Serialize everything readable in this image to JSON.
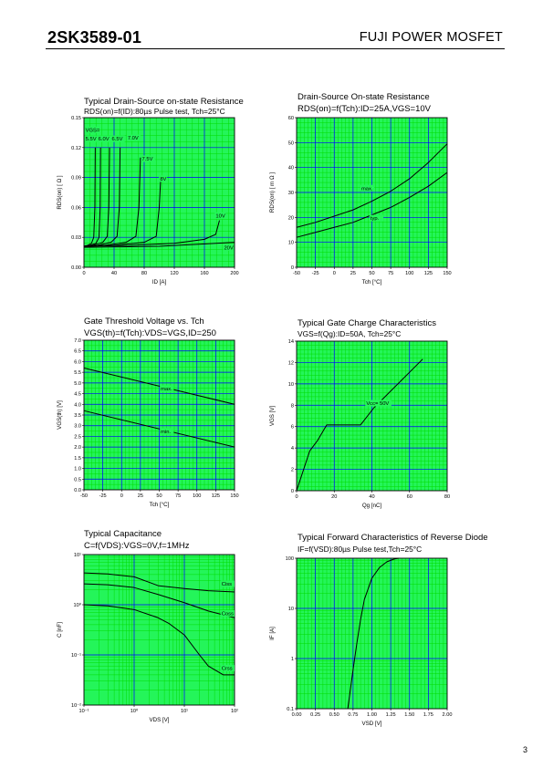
{
  "header": {
    "part_number": "2SK3589-01",
    "brand": "FUJI POWER MOSFET"
  },
  "page_number": "3",
  "chart_data": [
    {
      "id": "c1",
      "type": "line",
      "title": "Typical Drain-Source on-state Resistance",
      "subtitle": "RDS(on)=f(ID):80µs Pulse test, Tch=25°C",
      "xlabel": "ID [A]",
      "ylabel": "RDS(on) [ Ω ]",
      "xlim": [
        0,
        200
      ],
      "ylim": [
        0,
        0.15
      ],
      "grid": true,
      "xticks": [
        "0",
        "40",
        "80",
        "120",
        "160",
        "200"
      ],
      "yticks": [
        "0.00",
        "0.03",
        "0.06",
        "0.09",
        "0.12",
        "0.15"
      ],
      "series": [
        {
          "name": "5.5V",
          "x": [
            0,
            5,
            10,
            13,
            14.5,
            15
          ],
          "y": [
            0.021,
            0.022,
            0.024,
            0.03,
            0.06,
            0.12
          ]
        },
        {
          "name": "6.0V",
          "x": [
            0,
            8,
            16,
            20,
            21.5,
            22
          ],
          "y": [
            0.021,
            0.022,
            0.024,
            0.03,
            0.06,
            0.12
          ]
        },
        {
          "name": "6.5V",
          "x": [
            0,
            12,
            25,
            31,
            33,
            34
          ],
          "y": [
            0.021,
            0.022,
            0.025,
            0.031,
            0.06,
            0.12
          ]
        },
        {
          "name": "7.0V",
          "x": [
            0,
            18,
            36,
            44,
            47,
            48
          ],
          "y": [
            0.021,
            0.022,
            0.025,
            0.031,
            0.06,
            0.12
          ]
        },
        {
          "name": "7.5V",
          "x": [
            0,
            28,
            56,
            69,
            73,
            75
          ],
          "y": [
            0.021,
            0.022,
            0.025,
            0.031,
            0.06,
            0.11
          ]
        },
        {
          "name": "8V",
          "x": [
            0,
            40,
            80,
            96,
            100,
            102
          ],
          "y": [
            0.021,
            0.022,
            0.025,
            0.031,
            0.06,
            0.09
          ]
        },
        {
          "name": "10V",
          "x": [
            0,
            60,
            120,
            160,
            175,
            180
          ],
          "y": [
            0.021,
            0.022,
            0.024,
            0.028,
            0.033,
            0.047
          ]
        },
        {
          "name": "20V",
          "x": [
            0,
            50,
            100,
            150,
            200
          ],
          "y": [
            0.02,
            0.0205,
            0.021,
            0.023,
            0.025
          ]
        }
      ],
      "annotations": [
        {
          "text": "VGS=",
          "x": 2,
          "y": 0.136
        },
        {
          "text": "5.5V",
          "x": 2,
          "y": 0.127
        },
        {
          "text": "6.0V",
          "x": 19,
          "y": 0.127
        },
        {
          "text": "6.5V",
          "x": 37,
          "y": 0.127
        },
        {
          "text": "7.0V",
          "x": 58,
          "y": 0.128
        },
        {
          "text": "7.5V",
          "x": 77,
          "y": 0.107
        },
        {
          "text": "8V",
          "x": 101,
          "y": 0.087
        },
        {
          "text": "10V",
          "x": 175,
          "y": 0.05
        },
        {
          "text": "20V",
          "x": 186,
          "y": 0.018
        }
      ]
    },
    {
      "id": "c2",
      "type": "line",
      "title": "Drain-Source On-state Resistance",
      "subtitle": "RDS(on)=f(Tch):ID=25A,VGS=10V",
      "xlabel": "Tch [°C]",
      "ylabel": "RDS(on) [ m Ω ]",
      "xlim": [
        -50,
        150
      ],
      "ylim": [
        0,
        60
      ],
      "grid": true,
      "xticks": [
        "-50",
        "-25",
        "0",
        "25",
        "50",
        "75",
        "100",
        "125",
        "150"
      ],
      "yticks": [
        "0",
        "10",
        "20",
        "30",
        "40",
        "50",
        "60"
      ],
      "series": [
        {
          "name": "max.",
          "x": [
            -50,
            -25,
            0,
            25,
            50,
            75,
            100,
            125,
            150
          ],
          "y": [
            16,
            18,
            20.5,
            23,
            26.5,
            30.5,
            35.5,
            42,
            49.5
          ]
        },
        {
          "name": "typ.",
          "x": [
            -50,
            -25,
            0,
            25,
            50,
            75,
            100,
            125,
            150
          ],
          "y": [
            12,
            14,
            16,
            18,
            21,
            24,
            28,
            32.5,
            38
          ]
        }
      ],
      "annotations": [
        {
          "text": "max.",
          "x": 36,
          "y": 31
        },
        {
          "text": "typ.",
          "x": 48,
          "y": 19
        }
      ]
    },
    {
      "id": "c3",
      "type": "line",
      "title": "Gate Threshold Voltage vs. Tch",
      "subtitle": "VGS(th)=f(Tch):VDS=VGS,ID=250",
      "xlabel": "Tch [°C]",
      "ylabel": "VGS(th) [V]",
      "xlim": [
        -50,
        150
      ],
      "ylim": [
        0,
        7
      ],
      "grid": true,
      "xticks": [
        "-50",
        "-25",
        "0",
        "25",
        "50",
        "75",
        "100",
        "125",
        "150"
      ],
      "yticks": [
        "0.0",
        "0.5",
        "1.0",
        "1.5",
        "2.0",
        "2.5",
        "3.0",
        "3.5",
        "4.0",
        "4.5",
        "5.0",
        "5.5",
        "6.0",
        "6.5",
        "7.0"
      ],
      "series": [
        {
          "name": "max.",
          "x": [
            -50,
            150
          ],
          "y": [
            5.7,
            4.0
          ]
        },
        {
          "name": "min.",
          "x": [
            -50,
            150
          ],
          "y": [
            3.7,
            2.0
          ]
        }
      ],
      "annotations": [
        {
          "text": "max.",
          "x": 52,
          "y": 4.65
        },
        {
          "text": "min.",
          "x": 52,
          "y": 2.65
        }
      ]
    },
    {
      "id": "c4",
      "type": "line",
      "title": "Typical Gate Charge Characteristics",
      "subtitle": "VGS=f(Qg):ID=50A, Tch=25°C",
      "xlabel": "Qg [nC]",
      "ylabel": "VGS [V]",
      "xlim": [
        0,
        80
      ],
      "ylim": [
        0,
        15
      ],
      "grid": true,
      "xticks": [
        "0",
        "20",
        "40",
        "60",
        "80"
      ],
      "yticks": [
        "0",
        "2",
        "4",
        "6",
        "8",
        "10",
        "12",
        "14"
      ],
      "series": [
        {
          "name": "Vcc= 50V",
          "x": [
            0,
            7,
            11,
            16,
            34,
            41,
            67
          ],
          "y": [
            0,
            4,
            5,
            6.6,
            6.6,
            8.3,
            13.2
          ]
        }
      ],
      "annotations": [
        {
          "text": "Vcc= 50V",
          "x": 37,
          "y": 8.6
        }
      ]
    },
    {
      "id": "c5",
      "type": "line",
      "title": "Typical Capacitance",
      "subtitle": "C=f(VDS):VGS=0V,f=1MHz",
      "xlabel": "VDS [V]",
      "ylabel": "C [nF]",
      "xscale": "log",
      "yscale": "log",
      "xlim": [
        0.1,
        100
      ],
      "ylim": [
        0.01,
        10
      ],
      "grid": true,
      "xticks": [
        "10⁻¹",
        "10⁰",
        "10¹",
        "10²"
      ],
      "yticks": [
        "10⁻²",
        "10⁻¹",
        "10⁰",
        "10¹"
      ],
      "series": [
        {
          "name": "Ciss",
          "x": [
            0.1,
            0.3,
            1,
            2,
            3,
            10,
            30,
            100
          ],
          "y": [
            4.3,
            4.1,
            3.6,
            2.8,
            2.4,
            2.1,
            1.9,
            1.8
          ]
        },
        {
          "name": "Coss",
          "x": [
            0.1,
            0.3,
            1,
            3,
            10,
            30,
            100
          ],
          "y": [
            2.6,
            2.5,
            2.2,
            1.6,
            1.1,
            0.75,
            0.55
          ]
        },
        {
          "name": "Crss",
          "x": [
            0.1,
            0.3,
            1,
            3,
            5,
            10,
            20,
            30,
            60,
            100
          ],
          "y": [
            1.0,
            0.95,
            0.8,
            0.55,
            0.42,
            0.25,
            0.1,
            0.06,
            0.04,
            0.04
          ]
        }
      ],
      "annotations": [
        {
          "text": "Ciss",
          "x": 55,
          "y": 2.4
        },
        {
          "text": "Coss",
          "x": 55,
          "y": 0.62
        },
        {
          "text": "Crss",
          "x": 55,
          "y": 0.05
        }
      ]
    },
    {
      "id": "c6",
      "type": "line",
      "title": "Typical Forward Characteristics of Reverse Diode",
      "subtitle": "IF=f(VSD):80µs Pulse test,Tch=25°C",
      "xlabel": "VSD [V]",
      "ylabel": "IF [A]",
      "yscale": "log",
      "xlim": [
        0,
        2
      ],
      "ylim": [
        0.1,
        100
      ],
      "grid": true,
      "xticks": [
        "0.00",
        "0.25",
        "0.50",
        "0.75",
        "1.00",
        "1.25",
        "1.50",
        "1.75",
        "2.00"
      ],
      "yticks": [
        "0.1",
        "1",
        "10",
        "100"
      ],
      "series": [
        {
          "name": "",
          "x": [
            0.68,
            0.75,
            0.8,
            0.85,
            0.9,
            1.0,
            1.1,
            1.2,
            1.3,
            1.36
          ],
          "y": [
            0.1,
            0.6,
            2,
            6,
            15,
            40,
            65,
            85,
            97,
            100
          ]
        }
      ]
    }
  ]
}
